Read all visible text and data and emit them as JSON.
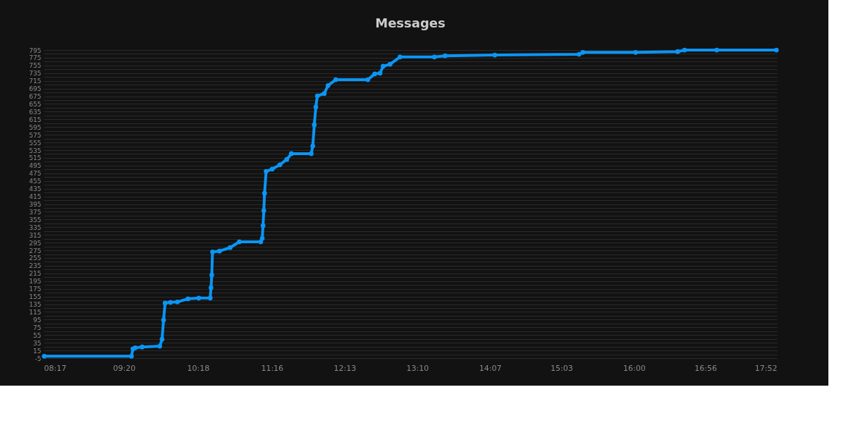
{
  "chart_data": {
    "type": "line",
    "title": "Messages",
    "x": [
      8.29,
      9.43,
      9.45,
      9.48,
      9.57,
      9.8,
      9.83,
      9.85,
      9.87,
      9.94,
      10.03,
      10.17,
      10.31,
      10.46,
      10.47,
      10.48,
      10.49,
      10.58,
      10.72,
      10.84,
      11.12,
      11.14,
      11.15,
      11.16,
      11.17,
      11.19,
      11.27,
      11.37,
      11.46,
      11.52,
      11.78,
      11.8,
      11.82,
      11.84,
      11.86,
      11.95,
      12.0,
      12.1,
      12.52,
      12.61,
      12.68,
      12.72,
      12.81,
      12.94,
      13.39,
      13.53,
      14.18,
      15.28,
      15.33,
      16.02,
      16.57,
      16.66,
      17.08,
      17.86
    ],
    "series": [
      {
        "color": "#0a96f5",
        "values": [
          0,
          0,
          19,
          22,
          24,
          26,
          44,
          94,
          138,
          140,
          141,
          149,
          151,
          151,
          178,
          211,
          271,
          273,
          282,
          297,
          297,
          306,
          339,
          378,
          423,
          480,
          486,
          497,
          511,
          526,
          526,
          546,
          601,
          647,
          676,
          682,
          703,
          718,
          718,
          733,
          735,
          753,
          758,
          777,
          777,
          780,
          782,
          784,
          789,
          789,
          791,
          795,
          795,
          795
        ]
      }
    ],
    "xlim": [
      8.2833,
      17.8667
    ],
    "xticks": [
      {
        "value": 8.2833,
        "label": "08:17"
      },
      {
        "value": 9.3333,
        "label": "09:20"
      },
      {
        "value": 10.3,
        "label": "10:18"
      },
      {
        "value": 11.2667,
        "label": "11:16"
      },
      {
        "value": 12.2167,
        "label": "12:13"
      },
      {
        "value": 13.1667,
        "label": "13:10"
      },
      {
        "value": 14.1167,
        "label": "14:07"
      },
      {
        "value": 15.05,
        "label": "15:03"
      },
      {
        "value": 16.0,
        "label": "16:00"
      },
      {
        "value": 16.9333,
        "label": "16:56"
      },
      {
        "value": 17.8667,
        "label": "17:52"
      }
    ],
    "ylim": [
      -5,
      795
    ],
    "yticks": [
      -5,
      {
        "value": 5,
        "label": null
      },
      15,
      {
        "value": 25,
        "label": null
      },
      35,
      {
        "value": 45,
        "label": null
      },
      55,
      {
        "value": 65,
        "label": null
      },
      75,
      {
        "value": 85,
        "label": null
      },
      95,
      {
        "value": 105,
        "label": null
      },
      115,
      {
        "value": 125,
        "label": null
      },
      135,
      {
        "value": 145,
        "label": null
      },
      155,
      {
        "value": 165,
        "label": null
      },
      175,
      {
        "value": 185,
        "label": null
      },
      195,
      {
        "value": 205,
        "label": null
      },
      215,
      {
        "value": 225,
        "label": null
      },
      235,
      {
        "value": 245,
        "label": null
      },
      255,
      {
        "value": 265,
        "label": null
      },
      275,
      {
        "value": 285,
        "label": null
      },
      295,
      {
        "value": 305,
        "label": null
      },
      315,
      {
        "value": 325,
        "label": null
      },
      335,
      {
        "value": 345,
        "label": null
      },
      355,
      {
        "value": 365,
        "label": null
      },
      375,
      {
        "value": 385,
        "label": null
      },
      395,
      {
        "value": 405,
        "label": null
      },
      415,
      {
        "value": 425,
        "label": null
      },
      435,
      {
        "value": 445,
        "label": null
      },
      455,
      {
        "value": 465,
        "label": null
      },
      475,
      {
        "value": 485,
        "label": null
      },
      495,
      {
        "value": 505,
        "label": null
      },
      515,
      {
        "value": 525,
        "label": null
      },
      535,
      {
        "value": 545,
        "label": null
      },
      555,
      {
        "value": 565,
        "label": null
      },
      575,
      {
        "value": 585,
        "label": null
      },
      595,
      {
        "value": 605,
        "label": null
      },
      615,
      {
        "value": 625,
        "label": null
      },
      635,
      {
        "value": 645,
        "label": null
      },
      655,
      {
        "value": 665,
        "label": null
      },
      675,
      {
        "value": 685,
        "label": null
      },
      695,
      {
        "value": 705,
        "label": null
      },
      715,
      {
        "value": 725,
        "label": null
      },
      735,
      {
        "value": 745,
        "label": null
      },
      755,
      {
        "value": 765,
        "label": null
      },
      775,
      {
        "value": 785,
        "label": null
      },
      795
    ],
    "grid": "y",
    "marker": "circle",
    "line_style": "solid"
  }
}
